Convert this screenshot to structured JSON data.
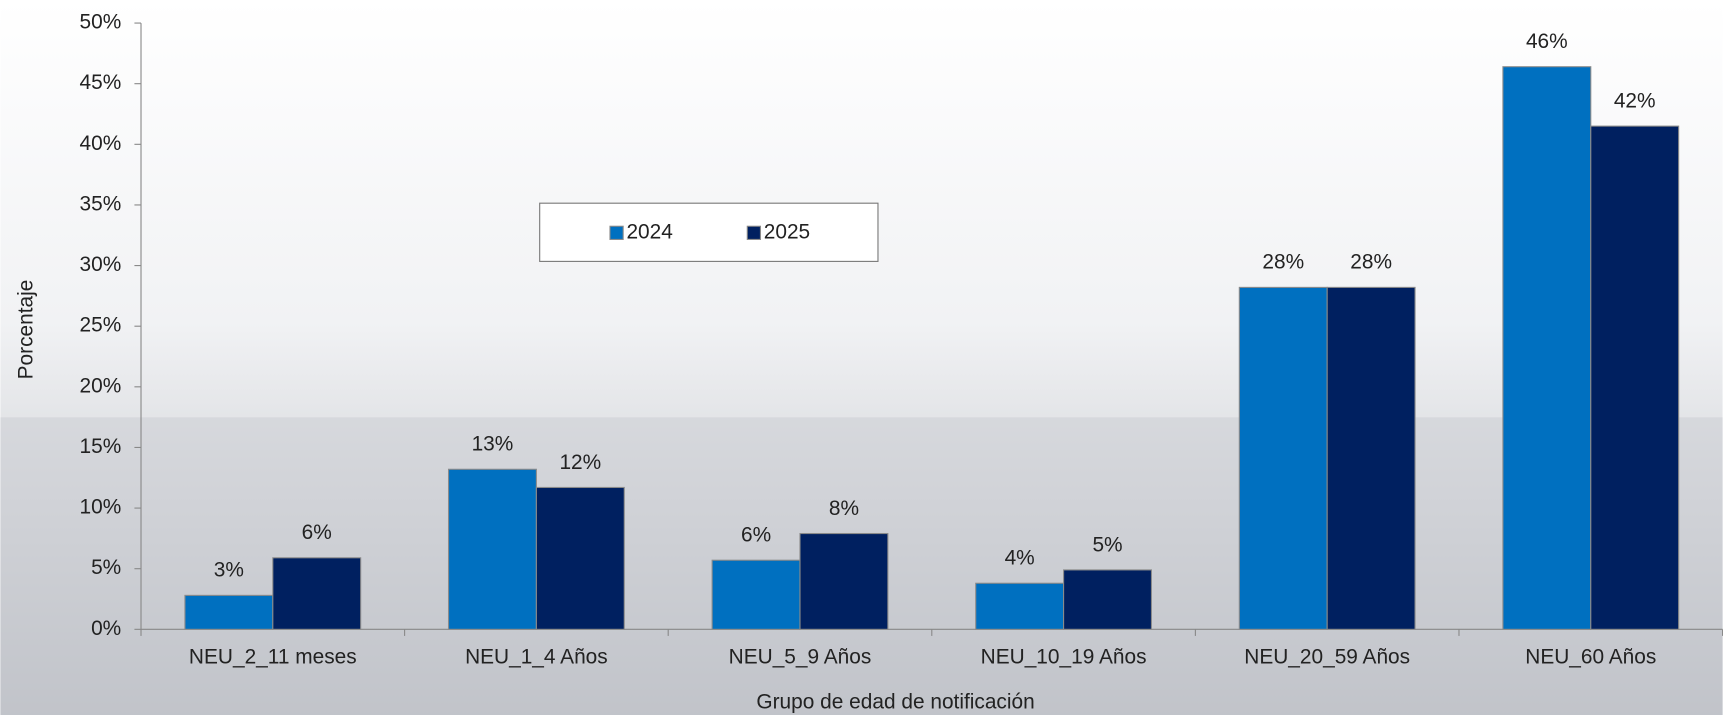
{
  "chart_data": {
    "type": "bar",
    "y_label": "Porcentaje",
    "x_label": "Grupo de edad de notificación",
    "categories": [
      "NEU_2_11 meses",
      "NEU_1_4 Años",
      "NEU_5_9 Años",
      "NEU_10_19 Años",
      "NEU_20_59 Años",
      "NEU_60 Años"
    ],
    "series": [
      {
        "name": "2024",
        "color": "#0070c0",
        "values": [
          2.8,
          13.2,
          5.7,
          3.8,
          28.2,
          46.4
        ],
        "value_labels": [
          "3%",
          "13%",
          "6%",
          "4%",
          "28%",
          "46%"
        ]
      },
      {
        "name": "2025",
        "color": "#002060",
        "values": [
          5.9,
          11.7,
          7.9,
          4.9,
          28.2,
          41.5
        ],
        "value_labels": [
          "6%",
          "12%",
          "8%",
          "5%",
          "28%",
          "42%"
        ]
      }
    ],
    "ylim": [
      0,
      50
    ],
    "yticks": [
      {
        "value": 0,
        "label": "0%"
      },
      {
        "value": 5,
        "label": "5%"
      },
      {
        "value": 10,
        "label": "10%"
      },
      {
        "value": 15,
        "label": "15%"
      },
      {
        "value": 20,
        "label": "20%"
      },
      {
        "value": 25,
        "label": "25%"
      },
      {
        "value": 30,
        "label": "30%"
      },
      {
        "value": 35,
        "label": "35%"
      },
      {
        "value": 40,
        "label": "40%"
      },
      {
        "value": 45,
        "label": "45%"
      },
      {
        "value": 50,
        "label": "50%"
      }
    ],
    "legend": "top-center"
  }
}
